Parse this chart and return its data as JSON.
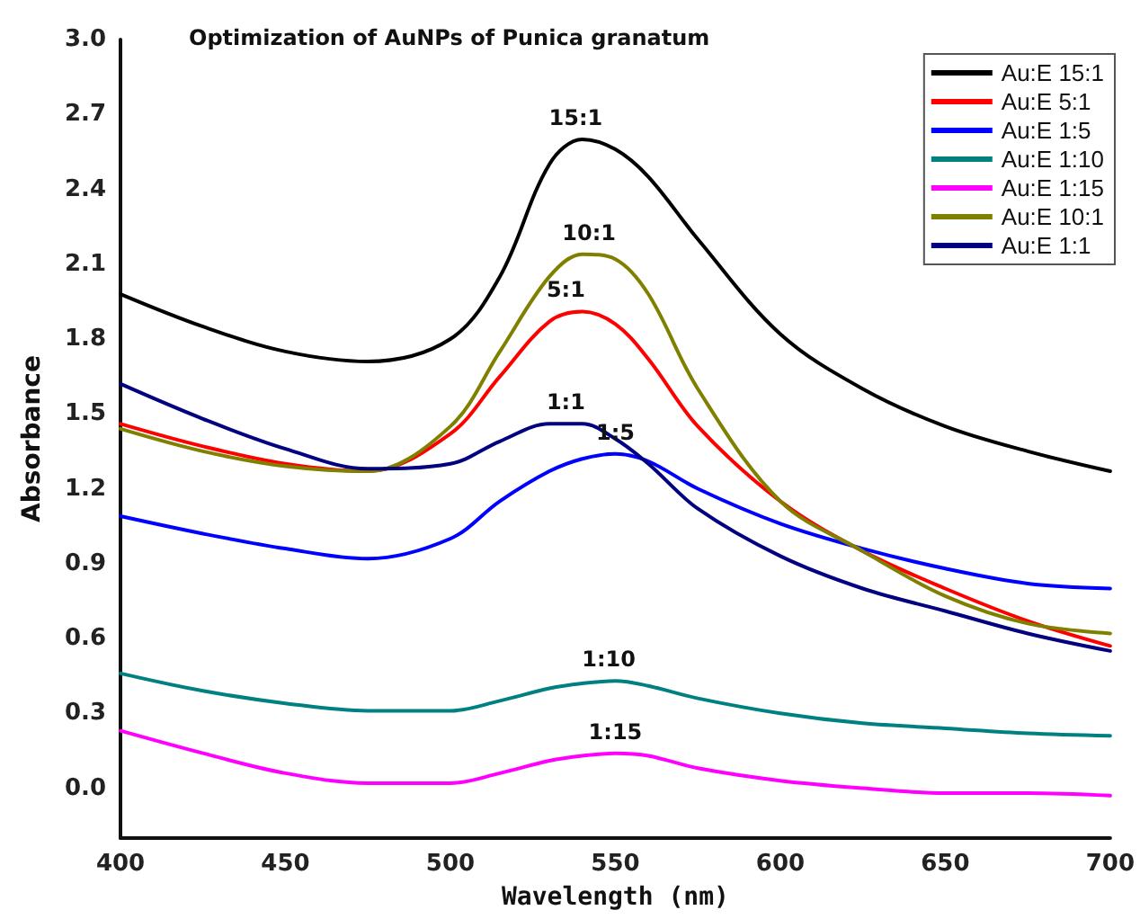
{
  "chart_data": {
    "type": "line",
    "title": "Optimization of AuNPs of Punica granatum",
    "xlabel": "Wavelength (nm)",
    "ylabel": "Absorbance",
    "xlim": [
      400,
      700
    ],
    "xticks": [
      400,
      450,
      500,
      550,
      600,
      650,
      700
    ],
    "ylim": [
      -0.2,
      3.0
    ],
    "yticks": [
      {
        "value": 0,
        "label": "0.0"
      },
      {
        "value": 0.3,
        "label": "0.3"
      },
      {
        "value": 0.6,
        "label": "0.6"
      },
      {
        "value": 0.9,
        "label": "0.9"
      },
      {
        "value": 1.2,
        "label": "1.2"
      },
      {
        "value": 1.5,
        "label": "1.5"
      },
      {
        "value": 1.8,
        "label": "1.8"
      },
      {
        "value": 2.1,
        "label": "2.1"
      },
      {
        "value": 2.4,
        "label": "2.4"
      },
      {
        "value": 2.7,
        "label": "2.7"
      },
      {
        "value": 3.0,
        "label": "3.0"
      }
    ],
    "grid": false,
    "legend": "top right",
    "marker": "none",
    "line_style": "solid",
    "x": [
      400,
      425,
      450,
      475,
      500,
      515,
      530,
      540,
      550,
      560,
      575,
      600,
      625,
      650,
      675,
      700
    ],
    "series": [
      {
        "name": "Au:E 15:1",
        "color": "#000000",
        "values": [
          1.98,
          1.85,
          1.75,
          1.71,
          1.8,
          2.05,
          2.5,
          2.6,
          2.56,
          2.45,
          2.2,
          1.82,
          1.6,
          1.45,
          1.35,
          1.27
        ]
      },
      {
        "name": "Au:E 5:1",
        "color": "#ff0000",
        "values": [
          1.46,
          1.37,
          1.3,
          1.27,
          1.42,
          1.65,
          1.87,
          1.91,
          1.86,
          1.72,
          1.45,
          1.15,
          0.95,
          0.8,
          0.67,
          0.57
        ]
      },
      {
        "name": "Au:E 1:5",
        "color": "#0000ff",
        "values": [
          1.09,
          1.02,
          0.96,
          0.92,
          1.0,
          1.15,
          1.27,
          1.32,
          1.34,
          1.31,
          1.2,
          1.06,
          0.96,
          0.88,
          0.82,
          0.8
        ]
      },
      {
        "name": "Au:E 1:10",
        "color": "#008080",
        "values": [
          0.46,
          0.39,
          0.34,
          0.31,
          0.31,
          0.35,
          0.4,
          0.42,
          0.43,
          0.41,
          0.36,
          0.3,
          0.26,
          0.24,
          0.22,
          0.21
        ]
      },
      {
        "name": "Au:E 1:15",
        "color": "#ff00ff",
        "values": [
          0.23,
          0.14,
          0.06,
          0.02,
          0.02,
          0.06,
          0.11,
          0.13,
          0.14,
          0.13,
          0.08,
          0.03,
          0.0,
          -0.02,
          -0.02,
          -0.03
        ]
      },
      {
        "name": "Au:E 10:1",
        "color": "#808000",
        "values": [
          1.44,
          1.35,
          1.29,
          1.27,
          1.45,
          1.75,
          2.05,
          2.14,
          2.12,
          1.98,
          1.6,
          1.15,
          0.95,
          0.77,
          0.66,
          0.62
        ]
      },
      {
        "name": "Au:E 1:1",
        "color": "#000080",
        "values": [
          1.62,
          1.48,
          1.36,
          1.28,
          1.3,
          1.39,
          1.46,
          1.46,
          1.4,
          1.3,
          1.12,
          0.93,
          0.8,
          0.71,
          0.62,
          0.55
        ]
      }
    ],
    "annotations": [
      {
        "text": "15:1",
        "x": 538,
        "y": 2.6
      },
      {
        "text": "10:1",
        "x": 542,
        "y": 2.14
      },
      {
        "text": "5:1",
        "x": 535,
        "y": 1.91
      },
      {
        "text": "1:1",
        "x": 535,
        "y": 1.46
      },
      {
        "text": "1:5",
        "x": 550,
        "y": 1.34
      },
      {
        "text": "1:10",
        "x": 548,
        "y": 0.43
      },
      {
        "text": "1:15",
        "x": 550,
        "y": 0.14
      }
    ]
  }
}
